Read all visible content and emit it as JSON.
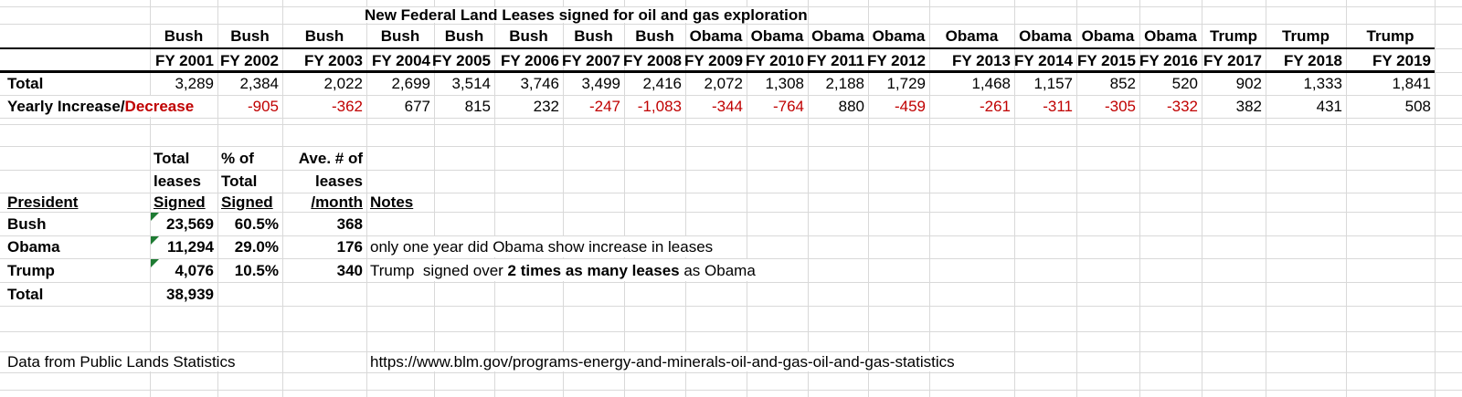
{
  "title": "New Federal Land Leases signed for oil and gas exploration",
  "colors": {
    "negative_red": "#C00000",
    "flag_green": "#1E7B33",
    "gridline": "#D9D9D9",
    "table_border": "#000000"
  },
  "fiscal_table": {
    "row_labels": {
      "total": "Total",
      "yearly_black": "Yearly Increase/",
      "yearly_red": "Decrease"
    },
    "columns": [
      {
        "president": "Bush",
        "fy": "FY 2001",
        "total": "3,289",
        "change": ""
      },
      {
        "president": "Bush",
        "fy": "FY 2002",
        "total": "2,384",
        "change": "-905"
      },
      {
        "president": "Bush",
        "fy": "FY 2003",
        "total": "2,022",
        "change": "-362"
      },
      {
        "president": "Bush",
        "fy": "FY 2004",
        "total": "2,699",
        "change": "677"
      },
      {
        "president": "Bush",
        "fy": "FY 2005",
        "total": "3,514",
        "change": "815"
      },
      {
        "president": "Bush",
        "fy": "FY 2006",
        "total": "3,746",
        "change": "232"
      },
      {
        "president": "Bush",
        "fy": "FY 2007",
        "total": "3,499",
        "change": "-247"
      },
      {
        "president": "Bush",
        "fy": "FY 2008",
        "total": "2,416",
        "change": "-1,083"
      },
      {
        "president": "Obama",
        "fy": "FY 2009",
        "total": "2,072",
        "change": "-344"
      },
      {
        "president": "Obama",
        "fy": "FY 2010",
        "total": "1,308",
        "change": "-764"
      },
      {
        "president": "Obama",
        "fy": "FY 2011",
        "total": "2,188",
        "change": "880"
      },
      {
        "president": "Obama",
        "fy": "FY 2012",
        "total": "1,729",
        "change": "-459"
      },
      {
        "president": "Obama",
        "fy": "FY 2013",
        "total": "1,468",
        "change": "-261"
      },
      {
        "president": "Obama",
        "fy": "FY 2014",
        "total": "1,157",
        "change": "-311"
      },
      {
        "president": "Obama",
        "fy": "FY 2015",
        "total": "852",
        "change": "-305"
      },
      {
        "president": "Obama",
        "fy": "FY 2016",
        "total": "520",
        "change": "-332"
      },
      {
        "president": "Trump",
        "fy": "FY 2017",
        "total": "902",
        "change": "382"
      },
      {
        "president": "Trump",
        "fy": "FY 2018",
        "total": "1,333",
        "change": "431"
      },
      {
        "president": "Trump",
        "fy": "FY 2019",
        "total": "1,841",
        "change": "508"
      }
    ]
  },
  "summary_table": {
    "col_headers": {
      "president": "President",
      "total_leases": [
        "Total",
        "leases",
        "Signed"
      ],
      "pct_of_total": [
        "% of",
        "Total",
        "Signed"
      ],
      "avg_per_month": [
        "Ave. # of",
        "leases",
        "/month"
      ],
      "notes": "Notes"
    },
    "rows": [
      {
        "president": "Bush",
        "total": "23,569",
        "pct": "60.5%",
        "avg": "368",
        "flag": true,
        "note": []
      },
      {
        "president": "Obama",
        "total": "11,294",
        "pct": "29.0%",
        "avg": "176",
        "flag": true,
        "note": [
          {
            "t": "only one year did Obama show increase in leases",
            "b": false
          }
        ]
      },
      {
        "president": "Trump",
        "total": "4,076",
        "pct": "10.5%",
        "avg": "340",
        "flag": true,
        "note": [
          {
            "t": "Trump  signed over ",
            "b": false
          },
          {
            "t": "2 times as many leases",
            "b": true
          },
          {
            "t": " as Obama",
            "b": false
          }
        ]
      }
    ],
    "total_row": {
      "label": "Total",
      "value": "38,939"
    }
  },
  "footer": {
    "source": "Data from Public Lands Statistics",
    "url": "https://www.blm.gov/programs-energy-and-minerals-oil-and-gas-oil-and-gas-statistics"
  }
}
